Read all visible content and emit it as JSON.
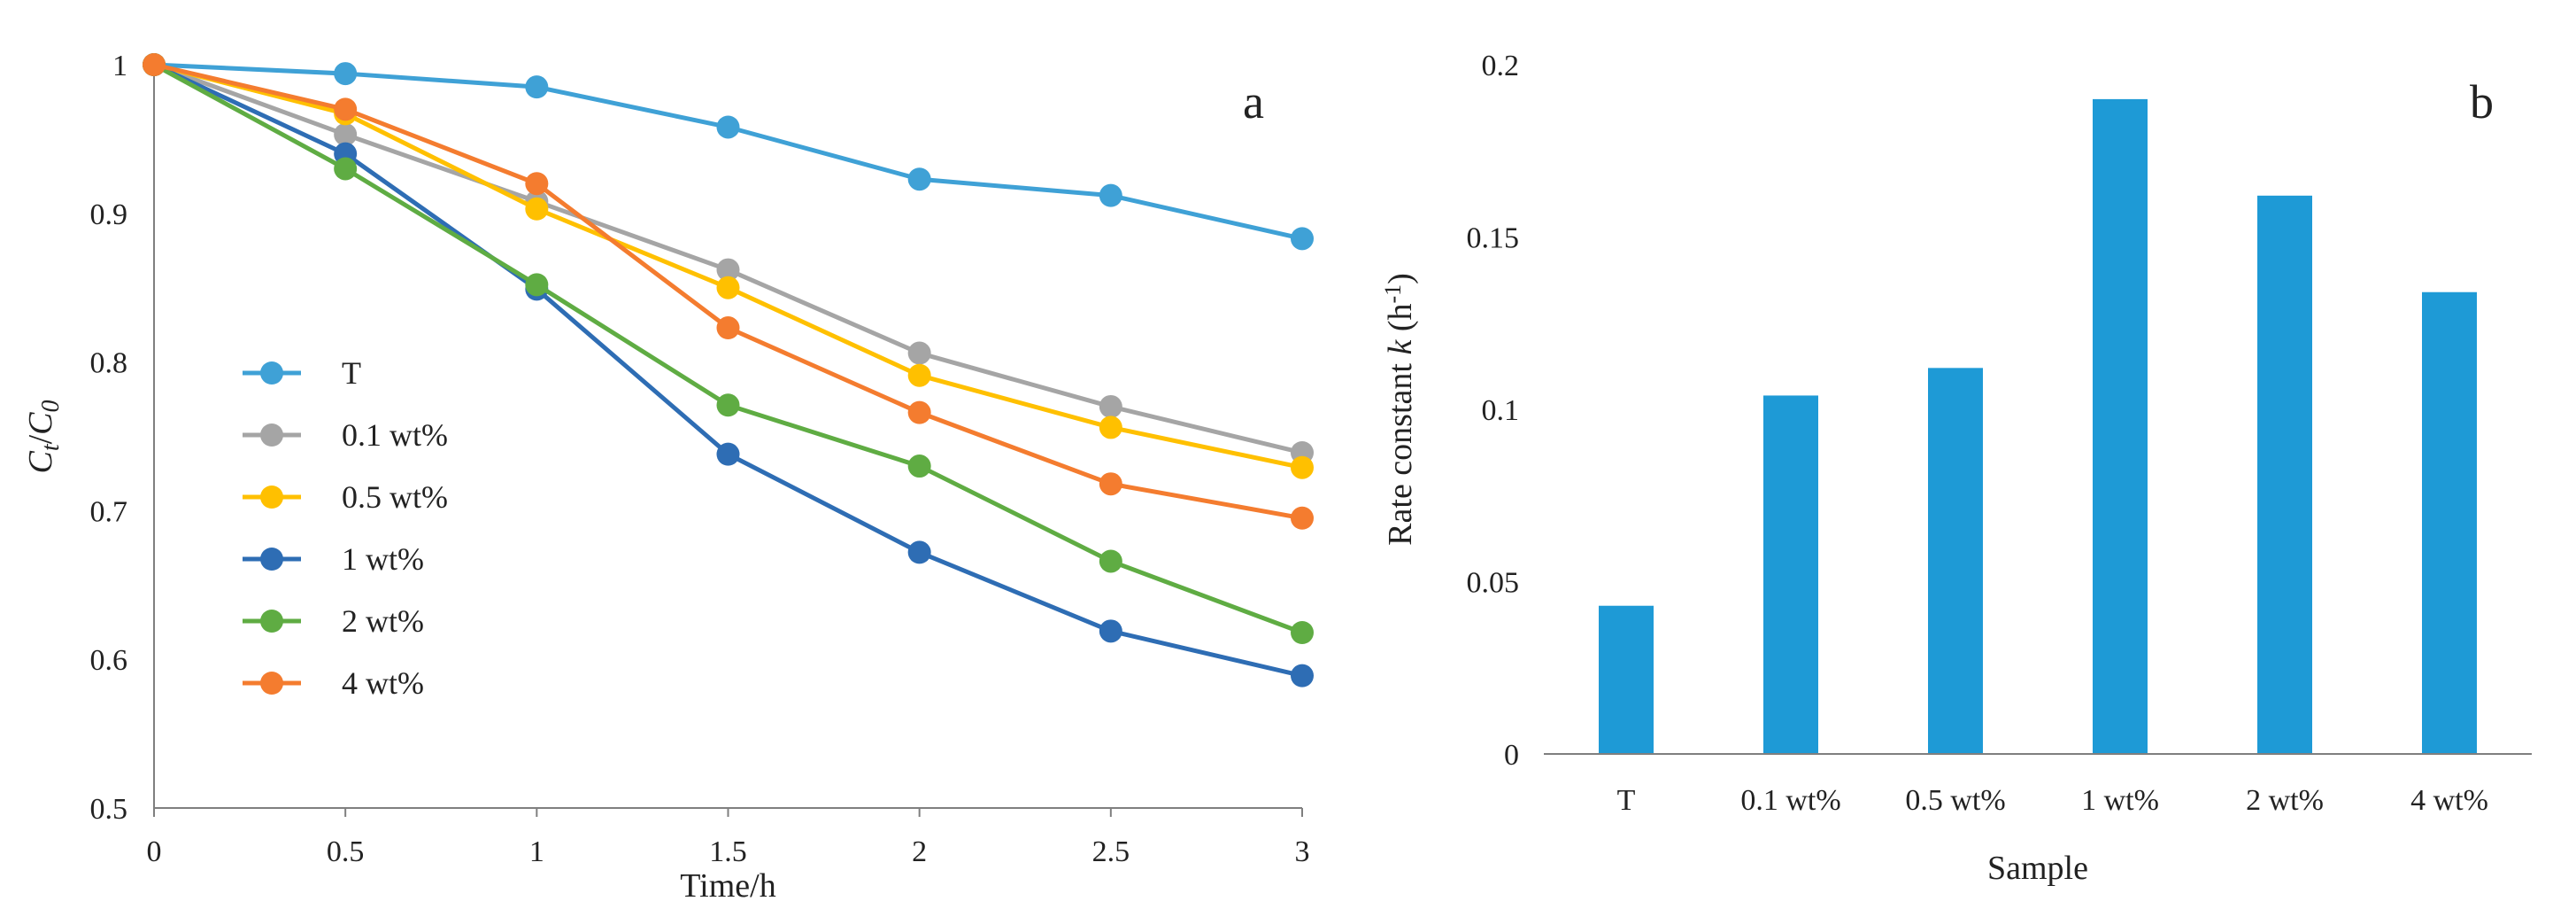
{
  "chart_data": [
    {
      "panel": "a",
      "type": "line",
      "xlabel": "Time/h",
      "ylabel": {
        "base": "C",
        "sub_t": "t",
        "sep": "/",
        "base2": "C",
        "sub_0": "0"
      },
      "x": [
        0,
        0.5,
        1,
        1.5,
        2,
        2.5,
        3
      ],
      "x_tick_labels": [
        "0",
        "0.5",
        "1",
        "1.5",
        "2",
        "2.5",
        "3"
      ],
      "xlim": [
        0,
        3
      ],
      "ylim": [
        0.5,
        1
      ],
      "y_ticks": [
        0.5,
        0.6,
        0.7,
        0.8,
        0.9,
        1
      ],
      "y_tick_labels": [
        "0.5",
        "0.6",
        "0.7",
        "0.8",
        "0.9",
        "1"
      ],
      "legend_position": "left-center",
      "series": [
        {
          "name": "T",
          "color": "#3fa1d6",
          "values": [
            1.0,
            0.994,
            0.985,
            0.958,
            0.923,
            0.912,
            0.883
          ]
        },
        {
          "name": "0.1 wt%",
          "color": "#a5a5a5",
          "values": [
            1.0,
            0.953,
            0.908,
            0.862,
            0.806,
            0.77,
            0.739
          ]
        },
        {
          "name": "0.5 wt%",
          "color": "#ffc000",
          "values": [
            1.0,
            0.967,
            0.903,
            0.85,
            0.791,
            0.756,
            0.729
          ]
        },
        {
          "name": "1 wt%",
          "color": "#2e6db4",
          "values": [
            1.0,
            0.94,
            0.849,
            0.738,
            0.672,
            0.619,
            0.589
          ]
        },
        {
          "name": "2 wt%",
          "color": "#5fac43",
          "values": [
            1.0,
            0.93,
            0.852,
            0.771,
            0.73,
            0.666,
            0.618
          ]
        },
        {
          "name": "4 wt%",
          "color": "#f47c2f",
          "values": [
            1.0,
            0.97,
            0.92,
            0.823,
            0.766,
            0.718,
            0.695
          ]
        }
      ]
    },
    {
      "panel": "b",
      "type": "bar",
      "xlabel": "Sample",
      "ylabel": {
        "pre": "Rate constant ",
        "k": "k",
        "unit": " (h",
        "sup": "-1",
        "close": ")"
      },
      "categories": [
        "T",
        "0.1 wt%",
        "0.5 wt%",
        "1 wt%",
        "2 wt%",
        "4 wt%"
      ],
      "values": [
        0.043,
        0.104,
        0.112,
        0.19,
        0.162,
        0.134
      ],
      "bar_color": "#1e9ad6",
      "ylim": [
        0,
        0.2
      ],
      "y_ticks": [
        0,
        0.05,
        0.1,
        0.15,
        0.2
      ],
      "y_tick_labels": [
        "0",
        "0.05",
        "0.1",
        "0.15",
        "0.2"
      ]
    }
  ]
}
